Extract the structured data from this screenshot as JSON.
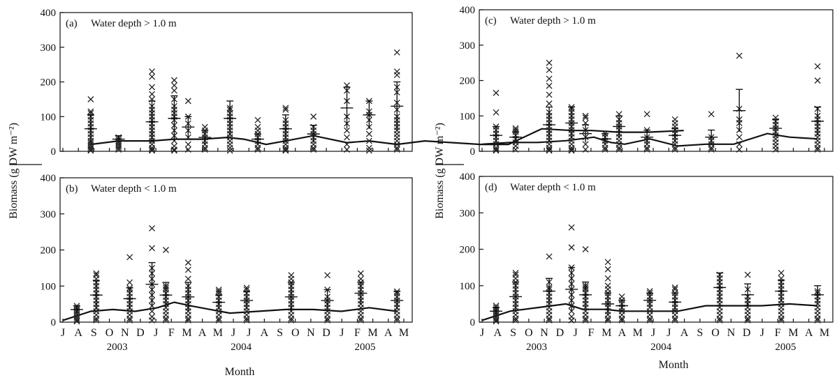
{
  "y_axis_label": "Biomass (g DW m⁻²)",
  "x_axis_label": "Month",
  "chart_data": [
    {
      "type": "scatter",
      "panel": "(a)",
      "title": "Water depth > 1.0 m",
      "ylim": [
        0,
        400
      ],
      "yticks": [
        0,
        100,
        200,
        300,
        400
      ],
      "month_labels": [
        "J",
        "A",
        "S",
        "O",
        "N",
        "D",
        "J",
        "F",
        "M",
        "A",
        "M",
        "J",
        "J",
        "A",
        "S",
        "O",
        "N",
        "D",
        "J",
        "F",
        "M",
        "A",
        "M"
      ],
      "year_labels": [
        {
          "label": "2003",
          "month_index": 3.5
        },
        {
          "label": "2004",
          "month_index": 11.5
        },
        {
          "label": "2005",
          "month_index": 19.5
        }
      ],
      "line": {
        "x": [
          1,
          2,
          3.2,
          4,
          5,
          5.9,
          6.5,
          7.3,
          8,
          9,
          10.2,
          11,
          12,
          13,
          14,
          15,
          16,
          17.2,
          18.3,
          19,
          20,
          21,
          22.3
        ],
        "y": [
          20,
          30,
          30,
          35,
          35,
          40,
          35,
          20,
          30,
          45,
          25,
          30,
          20,
          30,
          25,
          20,
          20,
          65,
          60,
          60,
          55,
          55,
          60
        ]
      },
      "samples": [
        {
          "x": 1,
          "mean": 65,
          "sd": 40,
          "values": [
            150,
            115,
            110,
            100,
            90,
            80,
            70,
            60,
            50,
            40,
            30,
            25,
            20,
            15,
            10,
            5,
            2
          ]
        },
        {
          "x": 2,
          "mean": 35,
          "sd": 10,
          "values": [
            40,
            35,
            30,
            25,
            20,
            15,
            10,
            5
          ]
        },
        {
          "x": 3.2,
          "mean": 85,
          "sd": 60,
          "values": [
            230,
            215,
            185,
            165,
            150,
            130,
            120,
            110,
            100,
            90,
            80,
            70,
            60,
            50,
            40,
            30,
            20,
            10,
            5,
            2
          ]
        },
        {
          "x": 4,
          "mean": 95,
          "sd": 65,
          "values": [
            205,
            190,
            175,
            150,
            130,
            120,
            110,
            100,
            90,
            75,
            60,
            45,
            30,
            15,
            5,
            2
          ]
        },
        {
          "x": 4.5,
          "mean": 70,
          "sd": 30,
          "values": [
            145,
            100,
            80,
            60,
            40,
            20,
            5
          ]
        },
        {
          "x": 5.1,
          "mean": 40,
          "sd": 20,
          "values": [
            70,
            60,
            50,
            40,
            30,
            20,
            10,
            5
          ]
        },
        {
          "x": 6,
          "mean": 95,
          "sd": 50,
          "values": [
            125,
            120,
            110,
            100,
            90,
            80,
            70,
            60,
            50,
            40,
            30,
            20,
            10,
            2
          ]
        },
        {
          "x": 7,
          "mean": 35,
          "sd": 15,
          "values": [
            90,
            70,
            60,
            50,
            40,
            30,
            20,
            10,
            5
          ]
        },
        {
          "x": 8,
          "mean": 65,
          "sd": 40,
          "values": [
            125,
            120,
            90,
            80,
            70,
            60,
            50,
            40,
            30,
            20,
            10,
            5,
            2
          ]
        },
        {
          "x": 9,
          "mean": 50,
          "sd": 25,
          "values": [
            100,
            70,
            60,
            50,
            40,
            30,
            20,
            10,
            5
          ]
        },
        {
          "x": 10.2,
          "mean": 125,
          "sd": 60,
          "values": [
            190,
            175,
            145,
            100,
            80,
            60,
            40,
            20,
            5
          ]
        },
        {
          "x": 11,
          "mean": 105,
          "sd": 40,
          "values": [
            145,
            115,
            105,
            90,
            70,
            50,
            30,
            10,
            2
          ]
        },
        {
          "x": 12,
          "mean": 130,
          "sd": 70,
          "values": [
            285,
            230,
            220,
            185,
            170,
            140,
            120,
            100,
            90,
            80,
            70,
            60,
            50,
            40,
            30,
            20,
            10,
            5
          ]
        }
      ]
    },
    {
      "type": "scatter",
      "panel": "(b)",
      "title": "Water depth < 1.0 m",
      "ylim": [
        0,
        400
      ],
      "yticks": [
        0,
        100,
        200,
        300,
        400
      ],
      "line": {
        "x": [
          0,
          1,
          1.8,
          2.6,
          3.4,
          4,
          4.6,
          5.3,
          6,
          7,
          8,
          9,
          10,
          11,
          12
        ],
        "y": [
          5,
          30,
          35,
          30,
          40,
          55,
          45,
          35,
          25,
          30,
          35,
          35,
          30,
          40,
          30
        ]
      },
      "samples": [
        {
          "x": 0.5,
          "mean": 35,
          "sd": 10,
          "values": [
            45,
            40,
            35,
            30,
            25,
            20,
            15,
            10,
            5,
            2
          ]
        },
        {
          "x": 1.2,
          "mean": 75,
          "sd": 40,
          "values": [
            135,
            130,
            120,
            110,
            100,
            90,
            80,
            70,
            60,
            50,
            40,
            30,
            20,
            10,
            5
          ]
        },
        {
          "x": 2.4,
          "mean": 65,
          "sd": 30,
          "values": [
            180,
            110,
            95,
            90,
            80,
            70,
            60,
            50,
            40,
            30,
            20,
            10,
            5
          ]
        },
        {
          "x": 3.2,
          "mean": 105,
          "sd": 60,
          "values": [
            260,
            205,
            150,
            135,
            120,
            105,
            90,
            75,
            60,
            45,
            30,
            15,
            5
          ]
        },
        {
          "x": 3.7,
          "mean": 75,
          "sd": 35,
          "values": [
            200,
            100,
            95,
            90,
            80,
            70,
            60,
            50,
            40,
            30,
            20,
            10,
            5
          ]
        },
        {
          "x": 4.5,
          "mean": 70,
          "sd": 40,
          "values": [
            165,
            145,
            120,
            100,
            90,
            80,
            70,
            60,
            50,
            40,
            30,
            20,
            10,
            5
          ]
        },
        {
          "x": 5.6,
          "mean": 55,
          "sd": 20,
          "values": [
            90,
            85,
            80,
            70,
            60,
            50,
            40,
            30,
            20,
            10,
            5
          ]
        },
        {
          "x": 6.6,
          "mean": 60,
          "sd": 25,
          "values": [
            95,
            90,
            80,
            70,
            60,
            50,
            40,
            30,
            20,
            10,
            5
          ]
        },
        {
          "x": 8.2,
          "mean": 70,
          "sd": 40,
          "values": [
            130,
            120,
            110,
            100,
            90,
            80,
            70,
            60,
            50,
            40,
            30,
            20,
            10,
            5
          ]
        },
        {
          "x": 9.5,
          "mean": 60,
          "sd": 30,
          "values": [
            130,
            90,
            70,
            60,
            50,
            40,
            30,
            20,
            10,
            5
          ]
        },
        {
          "x": 10.7,
          "mean": 80,
          "sd": 30,
          "values": [
            135,
            120,
            110,
            100,
            90,
            80,
            70,
            60,
            50,
            40,
            30,
            20,
            10,
            5
          ]
        },
        {
          "x": 12,
          "mean": 60,
          "sd": 25,
          "values": [
            85,
            80,
            70,
            60,
            50,
            40,
            30,
            20,
            10,
            5
          ]
        }
      ]
    },
    {
      "type": "scatter",
      "panel": "(c)",
      "title": "Water depth > 1.0 m",
      "ylim": [
        0,
        400
      ],
      "yticks": [
        0,
        100,
        200,
        300,
        400
      ],
      "month_labels": [
        "J",
        "A",
        "S",
        "O",
        "N",
        "D",
        "J",
        "F",
        "M",
        "A",
        "M",
        "J",
        "J",
        "A",
        "S",
        "O",
        "N",
        "D",
        "J",
        "F",
        "M",
        "A",
        "M"
      ],
      "year_labels": [
        {
          "label": "2003",
          "month_index": 3.5
        },
        {
          "label": "2004",
          "month_index": 11.5
        },
        {
          "label": "2005",
          "month_index": 19.5
        }
      ],
      "line": {
        "x": [
          0,
          1,
          2,
          3,
          4,
          4.6,
          5.1,
          6,
          7,
          8,
          9,
          10.2,
          11,
          12
        ],
        "y": [
          20,
          25,
          25,
          30,
          40,
          25,
          20,
          35,
          15,
          20,
          20,
          50,
          40,
          35
        ]
      },
      "samples": [
        {
          "x": 0.5,
          "mean": 45,
          "sd": 25,
          "values": [
            165,
            110,
            70,
            60,
            50,
            40,
            30,
            20,
            10,
            5,
            2
          ]
        },
        {
          "x": 1.2,
          "mean": 40,
          "sd": 15,
          "values": [
            65,
            60,
            55,
            45,
            35,
            25,
            15,
            5
          ]
        },
        {
          "x": 2.4,
          "mean": 75,
          "sd": 50,
          "values": [
            250,
            230,
            205,
            185,
            160,
            135,
            110,
            100,
            90,
            80,
            70,
            60,
            50,
            40,
            30,
            20,
            10,
            5,
            2
          ]
        },
        {
          "x": 3.2,
          "mean": 80,
          "sd": 45,
          "values": [
            125,
            120,
            110,
            100,
            90,
            80,
            70,
            60,
            50,
            40,
            30,
            20,
            10,
            5,
            2
          ]
        },
        {
          "x": 3.7,
          "mean": 50,
          "sd": 25,
          "values": [
            100,
            95,
            80,
            60,
            40,
            20,
            5
          ]
        },
        {
          "x": 4.4,
          "mean": 35,
          "sd": 15,
          "values": [
            50,
            40,
            30,
            20,
            10,
            5
          ]
        },
        {
          "x": 4.9,
          "mean": 70,
          "sd": 30,
          "values": [
            105,
            90,
            80,
            70,
            60,
            50,
            40,
            30,
            20,
            10,
            5
          ]
        },
        {
          "x": 5.9,
          "mean": 40,
          "sd": 20,
          "values": [
            105,
            60,
            40,
            30,
            20,
            10,
            5
          ]
        },
        {
          "x": 6.9,
          "mean": 45,
          "sd": 20,
          "values": [
            90,
            80,
            70,
            60,
            50,
            40,
            30,
            20,
            10,
            5
          ]
        },
        {
          "x": 8.2,
          "mean": 40,
          "sd": 20,
          "values": [
            105,
            40,
            30,
            20,
            10,
            5
          ]
        },
        {
          "x": 9.2,
          "mean": 115,
          "sd": 60,
          "values": [
            270,
            120,
            90,
            80,
            60,
            40,
            20,
            5
          ]
        },
        {
          "x": 10.5,
          "mean": 65,
          "sd": 25,
          "values": [
            95,
            85,
            75,
            65,
            55,
            45,
            35,
            25,
            15,
            5
          ]
        },
        {
          "x": 12,
          "mean": 85,
          "sd": 40,
          "values": [
            240,
            200,
            120,
            100,
            90,
            80,
            70,
            60,
            50,
            40,
            30,
            20,
            10,
            5
          ]
        }
      ]
    },
    {
      "type": "scatter",
      "panel": "(d)",
      "title": "Water depth < 1.0 m",
      "ylim": [
        0,
        400
      ],
      "yticks": [
        0,
        100,
        200,
        300,
        400
      ],
      "line": {
        "x": [
          0,
          1,
          2,
          3,
          3.6,
          4.4,
          5,
          6,
          7,
          8,
          9,
          10,
          11,
          12
        ],
        "y": [
          5,
          30,
          40,
          50,
          35,
          35,
          30,
          30,
          30,
          45,
          45,
          45,
          50,
          45
        ]
      },
      "samples": [
        {
          "x": 0.5,
          "mean": 30,
          "sd": 10,
          "values": [
            45,
            40,
            35,
            30,
            25,
            20,
            15,
            10,
            5,
            2
          ]
        },
        {
          "x": 1.2,
          "mean": 70,
          "sd": 40,
          "values": [
            135,
            130,
            120,
            110,
            100,
            90,
            80,
            70,
            60,
            50,
            40,
            30,
            20,
            10,
            5
          ]
        },
        {
          "x": 2.4,
          "mean": 85,
          "sd": 35,
          "values": [
            180,
            110,
            95,
            90,
            80,
            70,
            60,
            50,
            40,
            30,
            20,
            10,
            5
          ]
        },
        {
          "x": 3.2,
          "mean": 90,
          "sd": 60,
          "values": [
            260,
            205,
            150,
            135,
            120,
            105,
            90,
            75,
            60,
            45,
            30,
            15,
            5
          ]
        },
        {
          "x": 3.7,
          "mean": 75,
          "sd": 35,
          "values": [
            200,
            100,
            95,
            90,
            80,
            70,
            60,
            50,
            40,
            30,
            20,
            10,
            5
          ]
        },
        {
          "x": 4.5,
          "mean": 50,
          "sd": 30,
          "values": [
            165,
            145,
            120,
            100,
            90,
            80,
            70,
            60,
            50,
            40,
            30,
            20,
            10,
            5
          ]
        },
        {
          "x": 5,
          "mean": 45,
          "sd": 15,
          "values": [
            70,
            60,
            50,
            40,
            30,
            20,
            10,
            5
          ]
        },
        {
          "x": 6,
          "mean": 60,
          "sd": 20,
          "values": [
            85,
            80,
            70,
            60,
            50,
            40,
            30,
            20,
            10,
            5
          ]
        },
        {
          "x": 6.9,
          "mean": 55,
          "sd": 25,
          "values": [
            95,
            90,
            80,
            70,
            60,
            50,
            40,
            30,
            20,
            10,
            5
          ]
        },
        {
          "x": 8.5,
          "mean": 95,
          "sd": 40,
          "values": [
            130,
            120,
            110,
            100,
            90,
            80,
            70,
            60,
            50,
            40,
            30,
            20,
            10,
            5
          ]
        },
        {
          "x": 9.5,
          "mean": 75,
          "sd": 30,
          "values": [
            130,
            90,
            70,
            60,
            50,
            40,
            30,
            20,
            10,
            5
          ]
        },
        {
          "x": 10.7,
          "mean": 85,
          "sd": 30,
          "values": [
            135,
            120,
            110,
            100,
            90,
            80,
            70,
            60,
            50,
            40,
            30,
            20,
            10,
            5
          ]
        },
        {
          "x": 12,
          "mean": 75,
          "sd": 25,
          "values": [
            85,
            80,
            70,
            60,
            50,
            40,
            30,
            20,
            10,
            5
          ]
        }
      ]
    }
  ]
}
